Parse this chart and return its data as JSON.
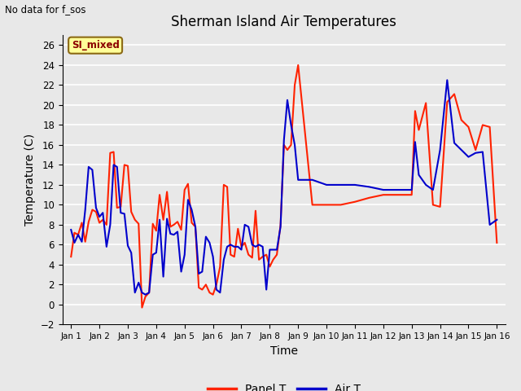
{
  "title": "Sherman Island Air Temperatures",
  "no_data_label": "No data for f_sos",
  "si_mixed_label": "SI_mixed",
  "xlabel": "Time",
  "ylabel": "Temperature (C)",
  "ylim": [
    -2,
    27
  ],
  "yticks": [
    -2,
    0,
    2,
    4,
    6,
    8,
    10,
    12,
    14,
    16,
    18,
    20,
    22,
    24,
    26
  ],
  "bg_color": "#e8e8e8",
  "grid_color": "#ffffff",
  "panel_t_color": "#ff2200",
  "air_t_color": "#0000cc",
  "fig_bg_color": "#e8e8e8",
  "x_labels": [
    "Jan 1",
    "Jan 2",
    "Jan 3",
    "Jan 4",
    "Jan 5",
    "Jan 6",
    "Jan 7",
    "Jan 8",
    "Jan 9",
    "Jan 10",
    "Jan 11",
    "Jan 12",
    "Jan 13",
    "Jan 14",
    "Jan 15",
    "Jan 16"
  ],
  "panel_t_x": [
    0,
    0.12,
    0.25,
    0.38,
    0.5,
    0.62,
    0.75,
    0.88,
    1.0,
    1.12,
    1.25,
    1.38,
    1.5,
    1.62,
    1.75,
    1.88,
    2.0,
    2.12,
    2.25,
    2.38,
    2.5,
    2.62,
    2.75,
    2.88,
    3.0,
    3.12,
    3.25,
    3.38,
    3.5,
    3.62,
    3.75,
    3.88,
    4.0,
    4.12,
    4.25,
    4.38,
    4.5,
    4.62,
    4.75,
    4.88,
    5.0,
    5.12,
    5.25,
    5.38,
    5.5,
    5.62,
    5.75,
    5.88,
    6.0,
    6.12,
    6.25,
    6.38,
    6.5,
    6.62,
    6.75,
    6.88,
    7.0,
    7.12,
    7.25,
    7.38,
    7.5,
    7.62,
    7.75,
    7.88,
    8.0,
    8.5,
    9.0,
    9.5,
    10.0,
    10.5,
    11.0,
    11.5,
    12.0,
    12.12,
    12.25,
    12.5,
    12.75,
    13.0,
    13.25,
    13.5,
    13.75,
    14.0,
    14.25,
    14.5,
    14.75,
    15.0
  ],
  "panel_t_y": [
    4.8,
    7.2,
    7.0,
    8.2,
    6.3,
    8.3,
    9.5,
    9.3,
    8.2,
    8.5,
    8.0,
    15.2,
    15.3,
    9.7,
    9.8,
    14.0,
    13.9,
    9.3,
    8.5,
    8.1,
    -0.3,
    0.8,
    1.2,
    8.1,
    7.4,
    11.0,
    8.5,
    11.3,
    7.8,
    8.0,
    8.3,
    7.5,
    11.5,
    12.1,
    8.2,
    7.8,
    1.7,
    1.5,
    2.0,
    1.2,
    1.0,
    2.0,
    3.8,
    12.0,
    11.8,
    5.0,
    4.8,
    7.6,
    5.8,
    6.2,
    5.0,
    4.7,
    9.4,
    4.5,
    4.8,
    5.0,
    3.8,
    4.5,
    5.0,
    8.0,
    16.0,
    15.5,
    16.0,
    22.0,
    24.0,
    10.0,
    10.0,
    10.0,
    10.3,
    10.7,
    11.0,
    11.0,
    11.0,
    19.4,
    17.5,
    20.2,
    10.0,
    9.8,
    20.3,
    21.1,
    18.5,
    17.8,
    15.5,
    18.0,
    17.8,
    6.2
  ],
  "air_t_x": [
    0,
    0.12,
    0.25,
    0.38,
    0.5,
    0.62,
    0.75,
    0.88,
    1.0,
    1.12,
    1.25,
    1.38,
    1.5,
    1.62,
    1.75,
    1.88,
    2.0,
    2.12,
    2.25,
    2.38,
    2.5,
    2.62,
    2.75,
    2.88,
    3.0,
    3.12,
    3.25,
    3.38,
    3.5,
    3.62,
    3.75,
    3.88,
    4.0,
    4.12,
    4.25,
    4.38,
    4.5,
    4.62,
    4.75,
    4.88,
    5.0,
    5.12,
    5.25,
    5.38,
    5.5,
    5.62,
    5.75,
    5.88,
    6.0,
    6.12,
    6.25,
    6.38,
    6.5,
    6.62,
    6.75,
    6.88,
    7.0,
    7.12,
    7.25,
    7.38,
    7.5,
    7.62,
    7.75,
    7.88,
    8.0,
    8.5,
    9.0,
    9.5,
    10.0,
    10.5,
    11.0,
    11.5,
    12.0,
    12.12,
    12.25,
    12.5,
    12.75,
    13.0,
    13.25,
    13.5,
    13.75,
    14.0,
    14.25,
    14.5,
    14.75,
    15.0
  ],
  "air_t_y": [
    7.5,
    6.2,
    7.0,
    6.3,
    9.5,
    13.8,
    13.5,
    9.7,
    8.8,
    9.2,
    5.8,
    8.0,
    14.0,
    13.8,
    9.2,
    9.1,
    5.9,
    5.2,
    1.2,
    2.2,
    1.2,
    1.0,
    1.2,
    5.0,
    5.2,
    8.5,
    2.8,
    8.6,
    7.1,
    7.0,
    7.3,
    3.3,
    5.0,
    10.5,
    9.5,
    7.8,
    3.1,
    3.3,
    6.8,
    6.2,
    4.8,
    1.5,
    1.2,
    4.5,
    5.8,
    6.0,
    5.8,
    5.8,
    5.5,
    8.0,
    7.8,
    6.0,
    5.8,
    6.0,
    5.8,
    1.5,
    5.5,
    5.5,
    5.5,
    7.8,
    16.5,
    20.5,
    18.0,
    16.0,
    12.5,
    12.5,
    12.0,
    12.0,
    12.0,
    11.8,
    11.5,
    11.5,
    11.5,
    16.3,
    13.0,
    12.0,
    11.5,
    15.5,
    22.5,
    16.2,
    15.5,
    14.8,
    15.2,
    15.3,
    8.0,
    8.5
  ]
}
